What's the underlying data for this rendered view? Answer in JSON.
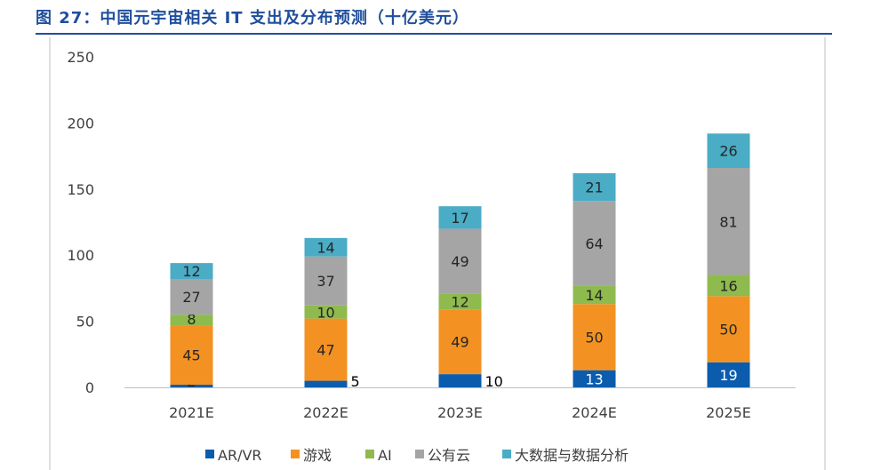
{
  "title": "图 27：中国元宇宙相关 IT 支出及分布预测（十亿美元）",
  "chart_data": {
    "type": "bar",
    "stacked": true,
    "title": "中国元宇宙相关 IT 支出及分布预测（十亿美元）",
    "categories": [
      "2021E",
      "2022E",
      "2023E",
      "2024E",
      "2025E"
    ],
    "ylim": [
      0,
      250
    ],
    "yticks": [
      0,
      50,
      100,
      150,
      200,
      250
    ],
    "series": [
      {
        "name": "AR/VR",
        "color": "#0b5cad",
        "values": [
          2,
          5,
          10,
          13,
          19
        ]
      },
      {
        "name": "游戏",
        "color": "#f39222",
        "values": [
          45,
          47,
          49,
          50,
          50
        ]
      },
      {
        "name": "AI",
        "color": "#8fba4e",
        "values": [
          8,
          10,
          12,
          14,
          16
        ]
      },
      {
        "name": "公有云",
        "color": "#a5a5a5",
        "values": [
          27,
          37,
          49,
          64,
          81
        ]
      },
      {
        "name": "大数据与数据分析",
        "color": "#4aacc5",
        "values": [
          12,
          14,
          17,
          21,
          26
        ]
      }
    ],
    "legend": "bottom",
    "grid": false
  }
}
